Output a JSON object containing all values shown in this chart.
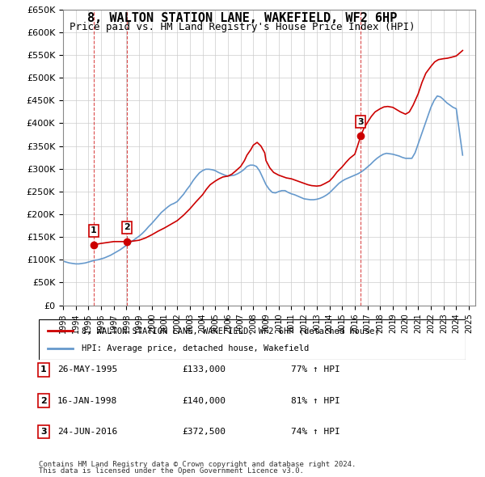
{
  "title": "8, WALTON STATION LANE, WAKEFIELD, WF2 6HP",
  "subtitle": "Price paid vs. HM Land Registry's House Price Index (HPI)",
  "ylim": [
    0,
    650000
  ],
  "yticks": [
    0,
    50000,
    100000,
    150000,
    200000,
    250000,
    300000,
    350000,
    400000,
    450000,
    500000,
    550000,
    600000,
    650000
  ],
  "ytick_labels": [
    "£0",
    "£50K",
    "£100K",
    "£150K",
    "£200K",
    "£250K",
    "£300K",
    "£350K",
    "£400K",
    "£450K",
    "£500K",
    "£550K",
    "£600K",
    "£650K"
  ],
  "xlim_start": 1993.0,
  "xlim_end": 2025.5,
  "sale_color": "#cc0000",
  "hpi_color": "#6699cc",
  "purchases": [
    {
      "label": 1,
      "year": 1995.4,
      "price": 133000,
      "date": "26-MAY-1995",
      "amount": "£133,000",
      "hpi": "77% ↑ HPI"
    },
    {
      "label": 2,
      "year": 1998.05,
      "price": 140000,
      "date": "16-JAN-1998",
      "amount": "£140,000",
      "hpi": "81% ↑ HPI"
    },
    {
      "label": 3,
      "year": 2016.48,
      "price": 372500,
      "date": "24-JUN-2016",
      "amount": "£372,500",
      "hpi": "74% ↑ HPI"
    }
  ],
  "legend_label1": "8, WALTON STATION LANE, WAKEFIELD, WF2 6HP (detached house)",
  "legend_label2": "HPI: Average price, detached house, Wakefield",
  "footer1": "Contains HM Land Registry data © Crown copyright and database right 2024.",
  "footer2": "This data is licensed under the Open Government Licence v3.0.",
  "hpi_data_x": [
    1993.0,
    1993.25,
    1993.5,
    1993.75,
    1994.0,
    1994.25,
    1994.5,
    1994.75,
    1995.0,
    1995.25,
    1995.5,
    1995.75,
    1996.0,
    1996.25,
    1996.5,
    1996.75,
    1997.0,
    1997.25,
    1997.5,
    1997.75,
    1998.0,
    1998.25,
    1998.5,
    1998.75,
    1999.0,
    1999.25,
    1999.5,
    1999.75,
    2000.0,
    2000.25,
    2000.5,
    2000.75,
    2001.0,
    2001.25,
    2001.5,
    2001.75,
    2002.0,
    2002.25,
    2002.5,
    2002.75,
    2003.0,
    2003.25,
    2003.5,
    2003.75,
    2004.0,
    2004.25,
    2004.5,
    2004.75,
    2005.0,
    2005.25,
    2005.5,
    2005.75,
    2006.0,
    2006.25,
    2006.5,
    2006.75,
    2007.0,
    2007.25,
    2007.5,
    2007.75,
    2008.0,
    2008.25,
    2008.5,
    2008.75,
    2009.0,
    2009.25,
    2009.5,
    2009.75,
    2010.0,
    2010.25,
    2010.5,
    2010.75,
    2011.0,
    2011.25,
    2011.5,
    2011.75,
    2012.0,
    2012.25,
    2012.5,
    2012.75,
    2013.0,
    2013.25,
    2013.5,
    2013.75,
    2014.0,
    2014.25,
    2014.5,
    2014.75,
    2015.0,
    2015.25,
    2015.5,
    2015.75,
    2016.0,
    2016.25,
    2016.5,
    2016.75,
    2017.0,
    2017.25,
    2017.5,
    2017.75,
    2018.0,
    2018.25,
    2018.5,
    2018.75,
    2019.0,
    2019.25,
    2019.5,
    2019.75,
    2020.0,
    2020.25,
    2020.5,
    2020.75,
    2021.0,
    2021.25,
    2021.5,
    2021.75,
    2022.0,
    2022.25,
    2022.5,
    2022.75,
    2023.0,
    2023.25,
    2023.5,
    2023.75,
    2024.0,
    2024.5
  ],
  "hpi_data_y": [
    97000,
    95000,
    93000,
    92000,
    91000,
    91000,
    92000,
    93000,
    95000,
    97000,
    99000,
    100000,
    102000,
    104000,
    107000,
    110000,
    114000,
    118000,
    122000,
    127000,
    132000,
    137000,
    142000,
    147000,
    152000,
    158000,
    165000,
    173000,
    180000,
    188000,
    196000,
    204000,
    210000,
    216000,
    221000,
    224000,
    228000,
    236000,
    244000,
    254000,
    263000,
    274000,
    283000,
    291000,
    296000,
    299000,
    299000,
    298000,
    296000,
    292000,
    289000,
    286000,
    284000,
    285000,
    286000,
    289000,
    293000,
    298000,
    305000,
    308000,
    308000,
    305000,
    295000,
    280000,
    265000,
    255000,
    248000,
    247000,
    250000,
    252000,
    252000,
    248000,
    245000,
    243000,
    240000,
    237000,
    234000,
    233000,
    232000,
    232000,
    233000,
    235000,
    238000,
    242000,
    247000,
    254000,
    261000,
    268000,
    273000,
    277000,
    280000,
    283000,
    286000,
    289000,
    293000,
    298000,
    304000,
    310000,
    317000,
    323000,
    328000,
    332000,
    334000,
    333000,
    332000,
    330000,
    328000,
    325000,
    323000,
    323000,
    323000,
    335000,
    355000,
    375000,
    395000,
    415000,
    435000,
    450000,
    460000,
    458000,
    452000,
    445000,
    440000,
    435000,
    432000,
    330000
  ],
  "sale_line_x": [
    1995.4,
    1995.6,
    1996.0,
    1997.0,
    1998.05,
    1998.5,
    1999.0,
    1999.5,
    2000.0,
    2000.5,
    2001.0,
    2001.5,
    2002.0,
    2002.5,
    2003.0,
    2003.5,
    2004.0,
    2004.3,
    2004.6,
    2005.0,
    2005.3,
    2005.6,
    2006.0,
    2006.3,
    2006.6,
    2007.0,
    2007.3,
    2007.5,
    2007.8,
    2008.0,
    2008.3,
    2008.6,
    2008.9,
    2009.0,
    2009.3,
    2009.6,
    2010.0,
    2010.3,
    2010.6,
    2011.0,
    2011.3,
    2011.6,
    2012.0,
    2012.3,
    2012.6,
    2013.0,
    2013.3,
    2013.6,
    2014.0,
    2014.3,
    2014.6,
    2015.0,
    2015.3,
    2015.6,
    2016.0,
    2016.48,
    2016.7,
    2017.0,
    2017.3,
    2017.6,
    2018.0,
    2018.3,
    2018.6,
    2019.0,
    2019.3,
    2019.6,
    2020.0,
    2020.3,
    2020.6,
    2021.0,
    2021.3,
    2021.6,
    2022.0,
    2022.3,
    2022.6,
    2023.0,
    2023.3,
    2023.6,
    2024.0,
    2024.5
  ],
  "sale_line_y": [
    133000,
    134000,
    136000,
    140000,
    140000,
    141000,
    143000,
    148000,
    155000,
    163000,
    170000,
    178000,
    186000,
    198000,
    212000,
    228000,
    243000,
    255000,
    265000,
    273000,
    278000,
    282000,
    284000,
    288000,
    295000,
    305000,
    318000,
    330000,
    342000,
    352000,
    358000,
    350000,
    335000,
    318000,
    302000,
    292000,
    286000,
    283000,
    280000,
    278000,
    275000,
    272000,
    268000,
    265000,
    263000,
    262000,
    263000,
    267000,
    273000,
    282000,
    293000,
    304000,
    314000,
    323000,
    332000,
    372500,
    388000,
    402000,
    415000,
    425000,
    432000,
    436000,
    437000,
    435000,
    430000,
    425000,
    420000,
    425000,
    440000,
    465000,
    490000,
    510000,
    525000,
    535000,
    540000,
    542000,
    543000,
    545000,
    548000,
    560000
  ]
}
